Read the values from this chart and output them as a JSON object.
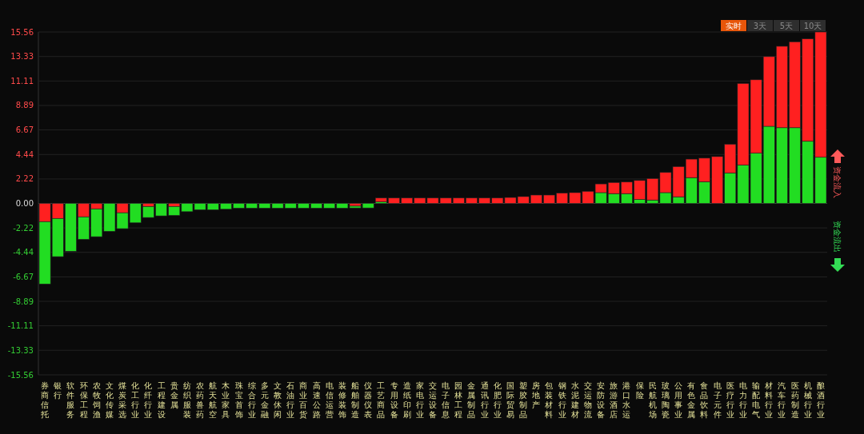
{
  "chart_data": {
    "type": "bar",
    "stacked": true,
    "grid": "y",
    "categories": [
      "券商信托",
      "银行",
      "软件服务",
      "环保工程",
      "农牧饲渔",
      "文化传媒",
      "煤炭采选",
      "化工行业",
      "化纤行业",
      "工程建设",
      "贵金属",
      "纺织服装",
      "农药兽药",
      "航天航空",
      "木业家具",
      "珠宝首饰",
      "综合行业",
      "多元金融",
      "文教休闲",
      "石油行业",
      "商业百货",
      "高速公路",
      "电信运营",
      "装修装饰",
      "船舶制造",
      "仪器仪表",
      "工艺商品",
      "专用设备",
      "造纸印刷",
      "家电行业",
      "交运设备",
      "电子信息",
      "园林工程",
      "金属制品",
      "通讯行业",
      "化肥行业",
      "国际贸易",
      "塑胶制品",
      "房地产",
      "包装材料",
      "钢铁行业",
      "水泥建材",
      "交运物流",
      "安防设备",
      "旅游酒店",
      "港口水运",
      "保险",
      "民航机场",
      "玻璃陶瓷",
      "公用事业",
      "有色金属",
      "食品饮料",
      "电子元件",
      "医疗行业",
      "电力行业",
      "输配电气",
      "材料行业",
      "汽车行业",
      "医药制造",
      "机械行业",
      "酿酒行业"
    ],
    "series": [
      {
        "values": [
          -1.66,
          -1.37,
          null,
          -1.23,
          -0.51,
          null,
          -0.85,
          null,
          -0.29,
          null,
          -0.29,
          null,
          null,
          null,
          null,
          null,
          null,
          null,
          null,
          null,
          null,
          null,
          null,
          null,
          -0.25,
          null,
          0.15,
          null,
          null,
          null,
          null,
          null,
          null,
          null,
          null,
          null,
          null,
          null,
          null,
          null,
          null,
          null,
          null,
          0.98,
          0.89,
          0.89,
          0.36,
          0.31,
          0.98,
          0.6,
          2.34,
          1.97,
          null,
          2.77,
          3.49,
          4.56,
          7.0,
          6.87,
          6.87,
          5.64,
          4.19
        ],
        "colors": [
          "#ff2020",
          "#ff2020",
          null,
          "#ff2020",
          "#ff2020",
          null,
          "#ff2020",
          null,
          "#ff2020",
          null,
          "#ff2020",
          null,
          null,
          null,
          null,
          null,
          null,
          null,
          null,
          null,
          null,
          null,
          null,
          null,
          "#ff2020",
          null,
          "#22dd22",
          null,
          null,
          null,
          null,
          null,
          null,
          null,
          null,
          null,
          null,
          null,
          null,
          null,
          null,
          null,
          null,
          "#22dd22",
          "#22dd22",
          "#22dd22",
          "#22dd22",
          "#22dd22",
          "#22dd22",
          "#22dd22",
          "#22dd22",
          "#22dd22",
          null,
          "#22dd22",
          "#22dd22",
          "#22dd22",
          "#22dd22",
          "#22dd22",
          "#22dd22",
          "#22dd22",
          "#22dd22"
        ]
      },
      {
        "values": [
          -5.65,
          -3.46,
          -4.34,
          -2.03,
          -2.51,
          -2.53,
          -1.44,
          -1.76,
          -0.99,
          -1.13,
          -0.8,
          -0.75,
          -0.58,
          -0.58,
          -0.53,
          -0.43,
          -0.43,
          -0.43,
          -0.43,
          -0.43,
          -0.43,
          -0.43,
          -0.43,
          -0.43,
          -0.16,
          -0.41,
          0.34,
          0.49,
          0.49,
          0.49,
          0.49,
          0.49,
          0.49,
          0.49,
          0.49,
          0.49,
          0.54,
          0.62,
          0.76,
          0.76,
          0.93,
          0.98,
          1.1,
          0.79,
          1.01,
          1.05,
          1.72,
          1.95,
          1.83,
          2.74,
          1.68,
          2.14,
          4.25,
          2.6,
          7.4,
          6.66,
          6.32,
          7.39,
          7.8,
          9.29,
          11.37
        ],
        "colors": [
          "#22dd22",
          "#22dd22",
          "#22dd22",
          "#22dd22",
          "#22dd22",
          "#22dd22",
          "#22dd22",
          "#22dd22",
          "#22dd22",
          "#22dd22",
          "#22dd22",
          "#22dd22",
          "#22dd22",
          "#22dd22",
          "#22dd22",
          "#22dd22",
          "#22dd22",
          "#22dd22",
          "#22dd22",
          "#22dd22",
          "#22dd22",
          "#22dd22",
          "#22dd22",
          "#22dd22",
          "#22dd22",
          "#22dd22",
          "#ff2020",
          "#ff2020",
          "#ff2020",
          "#ff2020",
          "#ff2020",
          "#ff2020",
          "#ff2020",
          "#ff2020",
          "#ff2020",
          "#ff2020",
          "#ff2020",
          "#ff2020",
          "#ff2020",
          "#ff2020",
          "#ff2020",
          "#ff2020",
          "#ff2020",
          "#ff2020",
          "#ff2020",
          "#ff2020",
          "#ff2020",
          "#ff2020",
          "#ff2020",
          "#ff2020",
          "#ff2020",
          "#ff2020",
          "#ff2020",
          "#ff2020",
          "#ff2020",
          "#ff2020",
          "#ff2020",
          "#ff2020",
          "#ff2020",
          "#ff2020",
          "#ff2020"
        ]
      }
    ],
    "ylim": [
      -15.56,
      15.56
    ],
    "yticks": [
      15.56,
      13.33,
      11.11,
      8.89,
      6.67,
      4.44,
      2.22,
      {
        "value": 0,
        "label": "0.00"
      },
      -2.22,
      -4.44,
      -6.67,
      -8.89,
      -11.11,
      -13.33,
      -15.56
    ],
    "annotations": [
      "实时",
      "3天",
      "5天",
      "10天",
      "资金流入",
      "资金流出"
    ]
  }
}
